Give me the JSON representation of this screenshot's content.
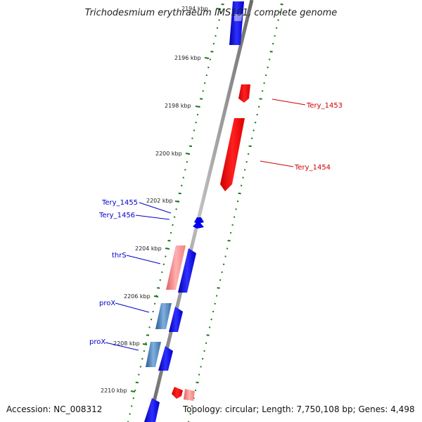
{
  "map": {
    "title": "Trichodesmium erythraeum IMS101, complete genome",
    "accession": "Accession: NC_008312",
    "topology": "Topology: circular; Length: 7,750,108 bp; Genes: 4,498"
  },
  "scale_labels": [
    "2194 kbp",
    "2196 kbp",
    "2198 kbp",
    "2200 kbp",
    "2202 kbp",
    "2204 kbp",
    "2206 kbp",
    "2208 kbp",
    "2210 kbp"
  ],
  "gene_labels": {
    "tery_1453": "Tery_1453",
    "tery_1454": "Tery_1454",
    "tery_1455": "Tery_1455",
    "tery_1456": "Tery_1456",
    "thrs": "thrS",
    "prox_1": "proX",
    "prox_2": "proX"
  },
  "colors": {
    "forward_gene": "#0000ee",
    "reverse_gene": "#ee0000",
    "reverse_light": "#f08080",
    "steel": "#3a6ea5",
    "backbone": "#888888",
    "ticks": "#1a7a1a"
  }
}
